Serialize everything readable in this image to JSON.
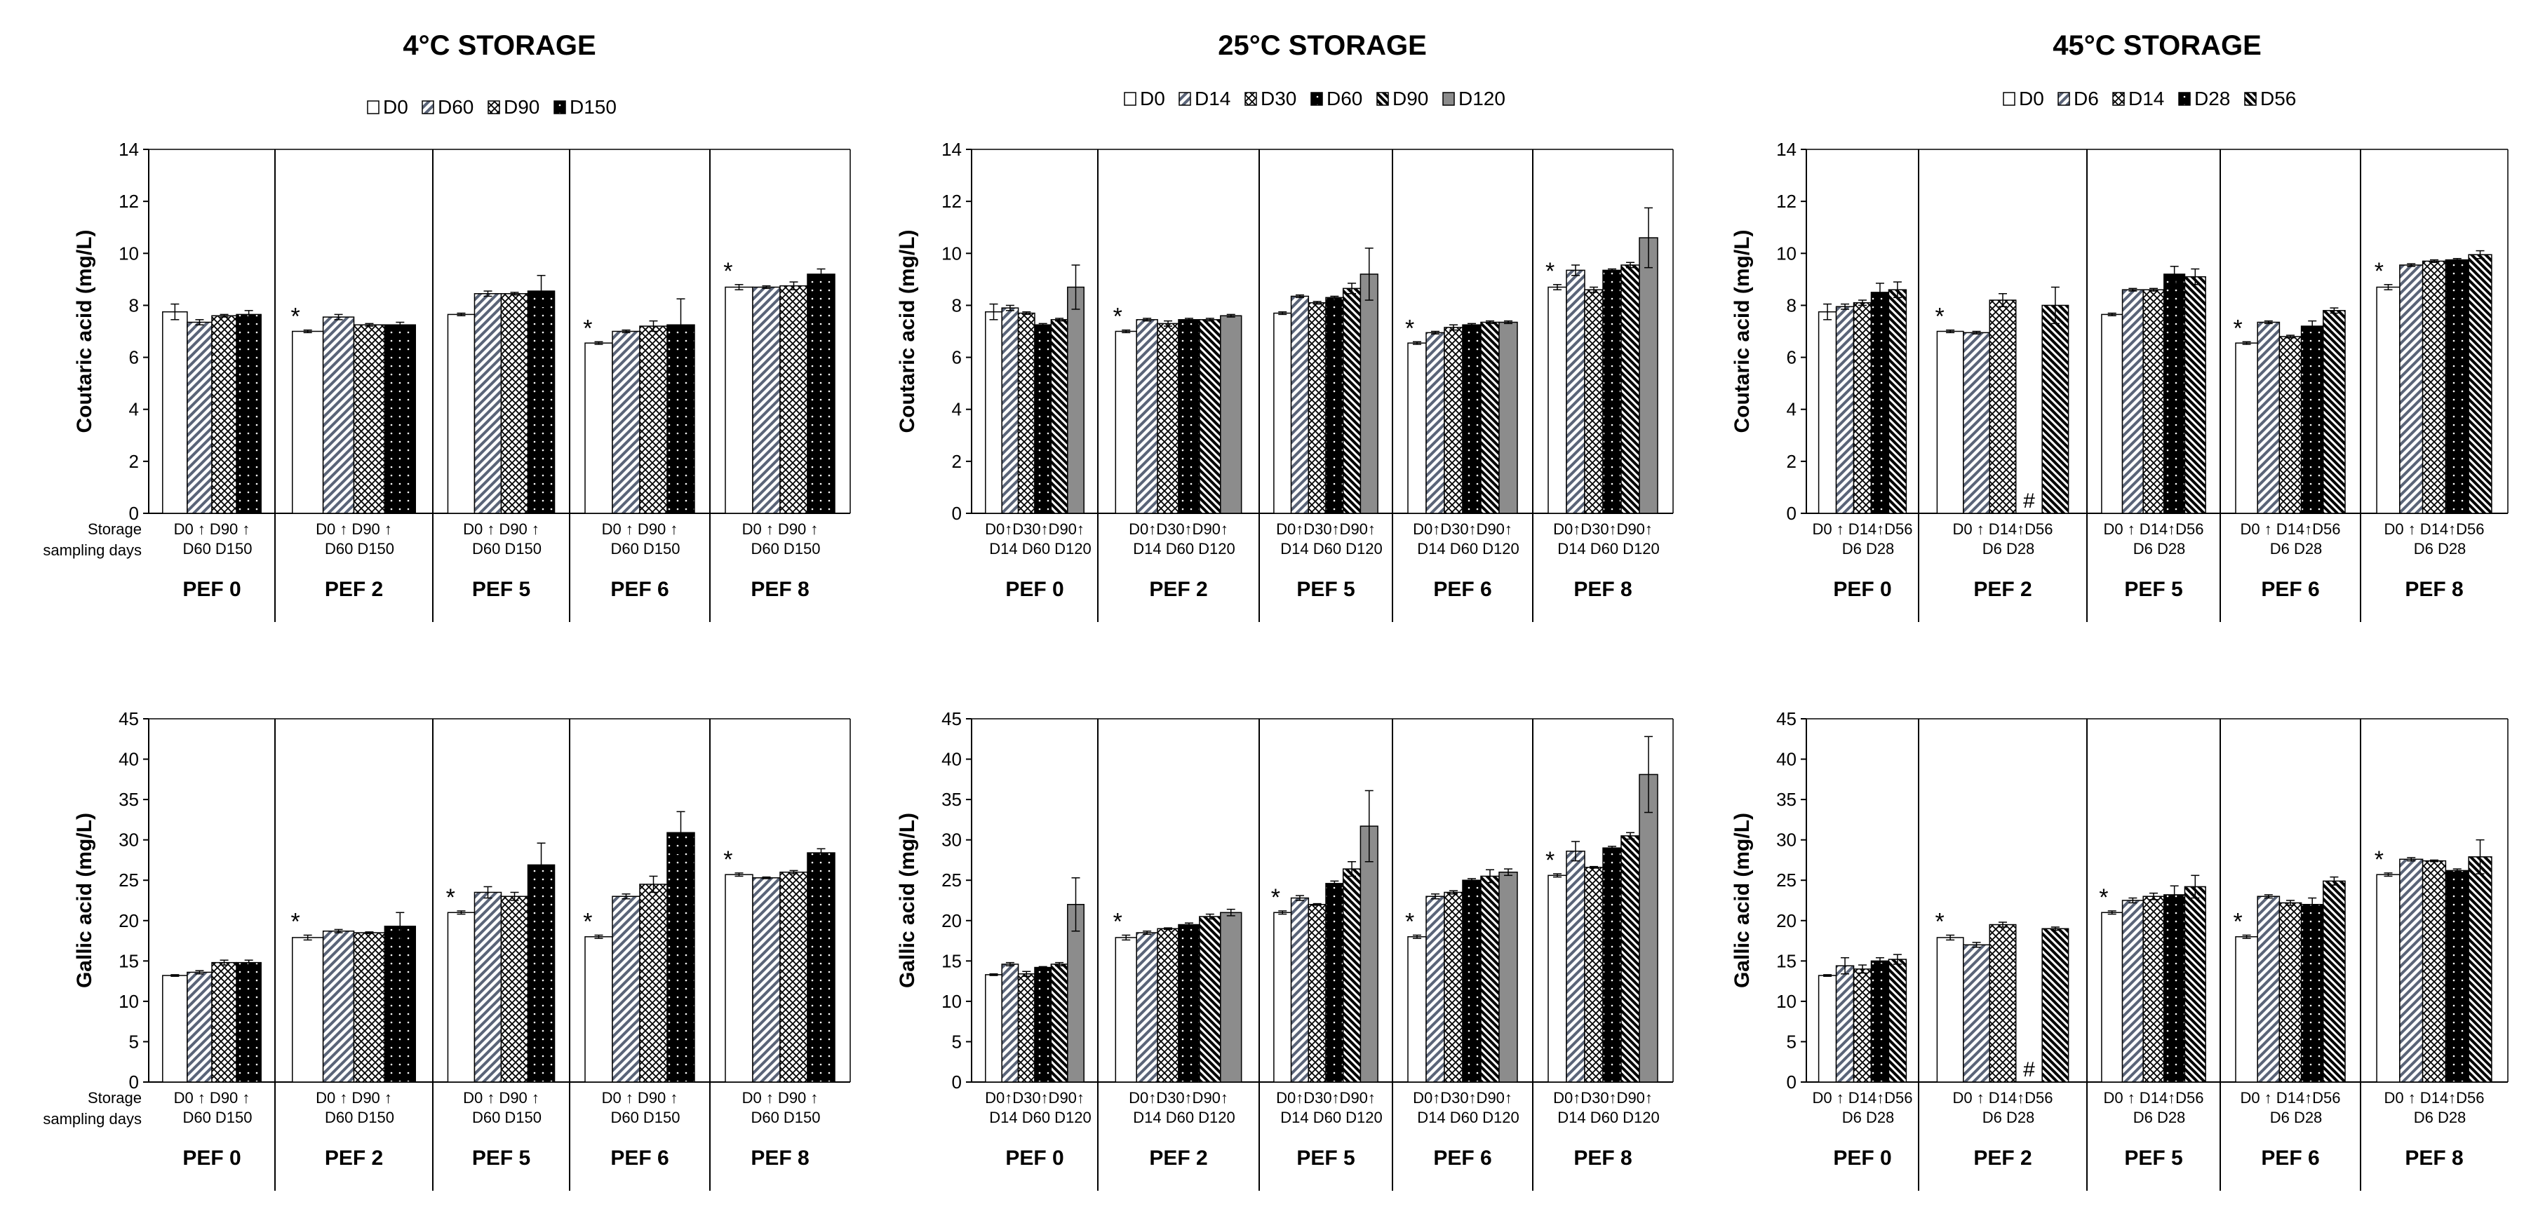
{
  "chart_data": [
    {
      "type": "bar",
      "title": "4°C STORAGE",
      "ylabel": "Coutaric acid (mg/L)",
      "ylim": [
        0,
        14
      ],
      "yticks": [
        "0",
        "2",
        "4",
        "6",
        "8",
        "10",
        "12",
        "14"
      ],
      "legend": [
        "D0",
        "D60",
        "D90",
        "D150"
      ],
      "series_styles": [
        "white",
        "diag",
        "cross",
        "black"
      ],
      "groups": [
        "PEF 0",
        "PEF 2",
        "PEF 5",
        "PEF 6",
        "PEF 8"
      ],
      "row_label": [
        "Storage",
        "sampling days"
      ],
      "sub_labels": [
        "D0 ↑ D90 ↑",
        "D60  D150"
      ],
      "values": [
        [
          7.75,
          7.35,
          7.6,
          7.65
        ],
        [
          7.0,
          7.55,
          7.25,
          7.25
        ],
        [
          7.65,
          8.45,
          8.45,
          8.55
        ],
        [
          6.55,
          7.0,
          7.2,
          7.25
        ],
        [
          8.7,
          8.7,
          8.75,
          9.2
        ]
      ],
      "errors": [
        [
          0.3,
          0.1,
          0.05,
          0.15
        ],
        [
          0.05,
          0.1,
          0.05,
          0.1
        ],
        [
          0.05,
          0.1,
          0.05,
          0.6
        ],
        [
          0.05,
          0.05,
          0.2,
          1.0
        ],
        [
          0.1,
          0.05,
          0.15,
          0.2
        ]
      ],
      "stars": [
        false,
        true,
        false,
        true,
        true
      ],
      "hashes": [
        [],
        [],
        [],
        [],
        []
      ]
    },
    {
      "type": "bar",
      "title": "25°C STORAGE",
      "ylabel": "Coutaric acid (mg/L)",
      "ylim": [
        0,
        14
      ],
      "yticks": [
        "0",
        "2",
        "4",
        "6",
        "8",
        "10",
        "12",
        "14"
      ],
      "legend": [
        "D0",
        "D14",
        "D30",
        "D60",
        "D90",
        "D120"
      ],
      "series_styles": [
        "white",
        "diag",
        "cross",
        "black",
        "stripe",
        "gray"
      ],
      "groups": [
        "PEF 0",
        "PEF 2",
        "PEF 5",
        "PEF 6",
        "PEF 8"
      ],
      "row_label": [],
      "sub_labels": [
        "D0↑D30↑D90↑",
        "D14 D60 D120"
      ],
      "values": [
        [
          7.75,
          7.9,
          7.7,
          7.25,
          7.45,
          8.7
        ],
        [
          7.0,
          7.45,
          7.3,
          7.45,
          7.45,
          7.6
        ],
        [
          7.7,
          8.35,
          8.1,
          8.3,
          8.65,
          9.2
        ],
        [
          6.55,
          6.95,
          7.15,
          7.25,
          7.35,
          7.35
        ],
        [
          8.7,
          9.35,
          8.6,
          9.35,
          9.55,
          10.6
        ]
      ],
      "errors": [
        [
          0.3,
          0.1,
          0.05,
          0.05,
          0.05,
          0.85
        ],
        [
          0.05,
          0.05,
          0.1,
          0.05,
          0.05,
          0.05
        ],
        [
          0.05,
          0.05,
          0.05,
          0.05,
          0.2,
          1.0
        ],
        [
          0.05,
          0.05,
          0.1,
          0.05,
          0.05,
          0.05
        ],
        [
          0.1,
          0.2,
          0.1,
          0.05,
          0.1,
          1.15
        ]
      ],
      "stars": [
        false,
        true,
        false,
        true,
        true
      ],
      "hashes": [
        [],
        [],
        [],
        [],
        []
      ]
    },
    {
      "type": "bar",
      "title": "45°C STORAGE",
      "ylabel": "Coutaric acid (mg/L)",
      "ylim": [
        0,
        14
      ],
      "yticks": [
        "0",
        "2",
        "4",
        "6",
        "8",
        "10",
        "12",
        "14"
      ],
      "legend": [
        "D0",
        "D6",
        "D14",
        "D28",
        "D56"
      ],
      "series_styles": [
        "white",
        "diag",
        "cross",
        "black",
        "stripe"
      ],
      "groups": [
        "PEF 0",
        "PEF 2",
        "PEF 5",
        "PEF 6",
        "PEF 8"
      ],
      "row_label": [],
      "sub_labels": [
        "D0 ↑ D14↑D56",
        "D6    D28"
      ],
      "values": [
        [
          7.75,
          7.95,
          8.1,
          8.5,
          8.6
        ],
        [
          7.0,
          6.95,
          8.2,
          null,
          8.0
        ],
        [
          7.65,
          8.6,
          8.6,
          9.2,
          9.1
        ],
        [
          6.55,
          7.35,
          6.8,
          7.2,
          7.8
        ],
        [
          8.7,
          9.55,
          9.7,
          9.75,
          9.95
        ]
      ],
      "errors": [
        [
          0.3,
          0.1,
          0.1,
          0.35,
          0.3
        ],
        [
          0.05,
          0.05,
          0.25,
          0,
          0.7
        ],
        [
          0.05,
          0.05,
          0.05,
          0.3,
          0.3
        ],
        [
          0.05,
          0.05,
          0.05,
          0.2,
          0.1
        ],
        [
          0.1,
          0.05,
          0.05,
          0.05,
          0.15
        ]
      ],
      "stars": [
        false,
        true,
        false,
        true,
        true
      ],
      "hashes": [
        [],
        [
          "#"
        ],
        [],
        [],
        []
      ]
    },
    {
      "type": "bar",
      "title": "",
      "ylabel": "Gallic acid (mg/L)",
      "ylim": [
        0,
        45
      ],
      "yticks": [
        "0",
        "5",
        "10",
        "15",
        "20",
        "25",
        "30",
        "35",
        "40",
        "45"
      ],
      "legend": [],
      "series_styles": [
        "white",
        "diag",
        "cross",
        "black"
      ],
      "groups": [
        "PEF 0",
        "PEF 2",
        "PEF 5",
        "PEF 6",
        "PEF 8"
      ],
      "row_label": [
        "Storage",
        "sampling days"
      ],
      "sub_labels": [
        "D0 ↑ D90 ↑",
        "D60  D150"
      ],
      "values": [
        [
          13.2,
          13.6,
          14.8,
          14.8
        ],
        [
          17.9,
          18.7,
          18.5,
          19.3
        ],
        [
          21.0,
          23.5,
          23.0,
          26.9
        ],
        [
          18.0,
          23.0,
          24.5,
          30.9
        ],
        [
          25.7,
          25.3,
          26.0,
          28.4
        ]
      ],
      "errors": [
        [
          0.1,
          0.2,
          0.3,
          0.3
        ],
        [
          0.3,
          0.2,
          0.1,
          1.7
        ],
        [
          0.2,
          0.7,
          0.5,
          2.7
        ],
        [
          0.2,
          0.3,
          1.0,
          2.6
        ],
        [
          0.2,
          0.1,
          0.2,
          0.5
        ]
      ],
      "stars": [
        false,
        true,
        true,
        true,
        true
      ],
      "hashes": [
        [],
        [],
        [],
        [],
        []
      ]
    },
    {
      "type": "bar",
      "title": "",
      "ylabel": "Gallic acid (mg/L)",
      "ylim": [
        0,
        45
      ],
      "yticks": [
        "0",
        "5",
        "10",
        "15",
        "20",
        "25",
        "30",
        "35",
        "40",
        "45"
      ],
      "legend": [],
      "series_styles": [
        "white",
        "diag",
        "cross",
        "black",
        "stripe",
        "gray"
      ],
      "groups": [
        "PEF 0",
        "PEF 2",
        "PEF 5",
        "PEF 6",
        "PEF 8"
      ],
      "row_label": [],
      "sub_labels": [
        "D0↑D30↑D90↑",
        "D14 D60 D120"
      ],
      "values": [
        [
          13.3,
          14.6,
          13.4,
          14.2,
          14.6,
          22.0
        ],
        [
          17.9,
          18.5,
          19.0,
          19.5,
          20.5,
          21.0
        ],
        [
          21.0,
          22.8,
          22.0,
          24.6,
          26.4,
          31.7
        ],
        [
          18.0,
          23.0,
          23.5,
          25.0,
          25.5,
          26.0
        ],
        [
          25.6,
          28.6,
          26.6,
          29.0,
          30.5,
          38.1
        ]
      ],
      "errors": [
        [
          0.1,
          0.2,
          0.3,
          0.1,
          0.2,
          3.3
        ],
        [
          0.3,
          0.2,
          0.1,
          0.2,
          0.3,
          0.4
        ],
        [
          0.2,
          0.3,
          0.1,
          0.3,
          0.9,
          4.4
        ],
        [
          0.2,
          0.3,
          0.2,
          0.2,
          0.8,
          0.4
        ],
        [
          0.2,
          1.2,
          0.1,
          0.2,
          0.4,
          4.7
        ]
      ],
      "stars": [
        false,
        true,
        true,
        true,
        true
      ],
      "hashes": [
        [],
        [],
        [],
        [],
        []
      ]
    },
    {
      "type": "bar",
      "title": "",
      "ylabel": "Gallic acid (mg/L)",
      "ylim": [
        0,
        45
      ],
      "yticks": [
        "0",
        "5",
        "10",
        "15",
        "20",
        "25",
        "30",
        "35",
        "40",
        "45"
      ],
      "legend": [],
      "series_styles": [
        "white",
        "diag",
        "cross",
        "black",
        "stripe"
      ],
      "groups": [
        "PEF 0",
        "PEF 2",
        "PEF 5",
        "PEF 6",
        "PEF 8"
      ],
      "row_label": [],
      "sub_labels": [
        "D0 ↑ D14↑D56",
        "D6    D28"
      ],
      "values": [
        [
          13.2,
          14.4,
          14.0,
          15.0,
          15.2
        ],
        [
          17.9,
          17.0,
          19.5,
          null,
          19.0
        ],
        [
          21.0,
          22.5,
          23.0,
          23.2,
          24.2
        ],
        [
          18.0,
          23.0,
          22.2,
          22.0,
          24.9
        ],
        [
          25.7,
          27.6,
          27.4,
          26.2,
          27.9
        ]
      ],
      "errors": [
        [
          0.1,
          1.0,
          0.5,
          0.4,
          0.6
        ],
        [
          0.3,
          0.3,
          0.3,
          0,
          0.2
        ],
        [
          0.2,
          0.3,
          0.4,
          1.1,
          1.4
        ],
        [
          0.2,
          0.2,
          0.3,
          0.8,
          0.5
        ],
        [
          0.2,
          0.2,
          0.1,
          0.2,
          2.1
        ]
      ],
      "stars": [
        false,
        true,
        true,
        true,
        true
      ],
      "hashes": [
        [],
        [
          "#"
        ],
        [],
        [],
        []
      ]
    }
  ]
}
